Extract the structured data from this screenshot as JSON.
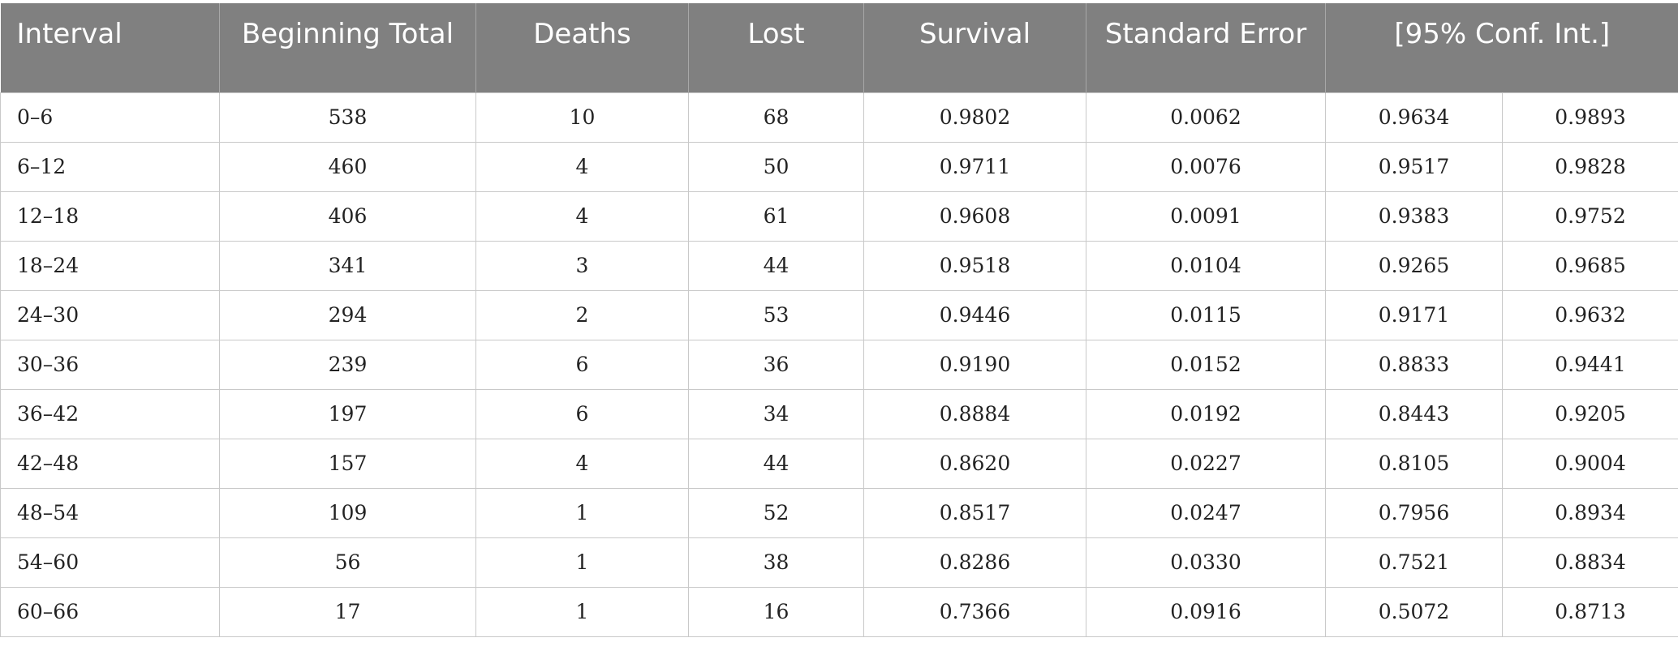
{
  "table": {
    "headers": {
      "interval": "Interval",
      "beginning_total": "Beginning Total",
      "deaths": "Deaths",
      "lost": "Lost",
      "survival": "Survival",
      "standard_error": "Standard Error",
      "conf_int": "[95% Conf. Int.]"
    },
    "rows": [
      [
        "0–6",
        "538",
        "10",
        "68",
        "0.9802",
        "0.0062",
        "0.9634",
        "0.9893"
      ],
      [
        "6–12",
        "460",
        "4",
        "50",
        "0.9711",
        "0.0076",
        "0.9517",
        "0.9828"
      ],
      [
        "12–18",
        "406",
        "4",
        "61",
        "0.9608",
        "0.0091",
        "0.9383",
        "0.9752"
      ],
      [
        "18–24",
        "341",
        "3",
        "44",
        "0.9518",
        "0.0104",
        "0.9265",
        "0.9685"
      ],
      [
        "24–30",
        "294",
        "2",
        "53",
        "0.9446",
        "0.0115",
        "0.9171",
        "0.9632"
      ],
      [
        "30–36",
        "239",
        "6",
        "36",
        "0.9190",
        "0.0152",
        "0.8833",
        "0.9441"
      ],
      [
        "36–42",
        "197",
        "6",
        "34",
        "0.8884",
        "0.0192",
        "0.8443",
        "0.9205"
      ],
      [
        "42–48",
        "157",
        "4",
        "44",
        "0.8620",
        "0.0227",
        "0.8105",
        "0.9004"
      ],
      [
        "48–54",
        "109",
        "1",
        "52",
        "0.8517",
        "0.0247",
        "0.7956",
        "0.8934"
      ],
      [
        "54–60",
        "56",
        "1",
        "38",
        "0.8286",
        "0.0330",
        "0.7521",
        "0.8834"
      ],
      [
        "60–66",
        "17",
        "1",
        "16",
        "0.7366",
        "0.0916",
        "0.5072",
        "0.8713"
      ]
    ]
  }
}
